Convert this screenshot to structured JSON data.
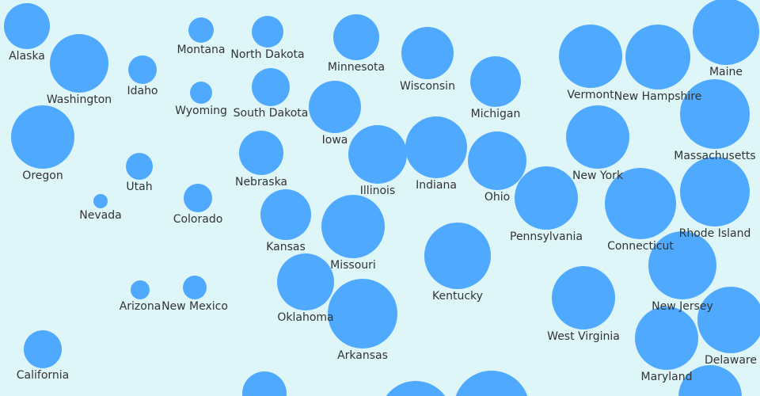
{
  "map": {
    "bubble_color": "#4fa9ff",
    "background_color": "#def6f8",
    "label_color": "#333333",
    "states": [
      "Alaska",
      "Washington",
      "Idaho",
      "Montana",
      "North Dakota",
      "Wyoming",
      "South Dakota",
      "Minnesota",
      "Wisconsin",
      "Michigan",
      "Vermont",
      "New Hampshire",
      "Maine",
      "Oregon",
      "Utah",
      "Nevada",
      "Colorado",
      "Nebraska",
      "Iowa",
      "Illinois",
      "Indiana",
      "Ohio",
      "New York",
      "Massachusetts",
      "Kansas",
      "Missouri",
      "Pennsylvania",
      "Connecticut",
      "Rhode Island",
      "Kentucky",
      "Oklahoma",
      "Arkansas",
      "Arizona",
      "New Mexico",
      "West Virginia",
      "New Jersey",
      "Maryland",
      "Delaware",
      "California"
    ]
  }
}
